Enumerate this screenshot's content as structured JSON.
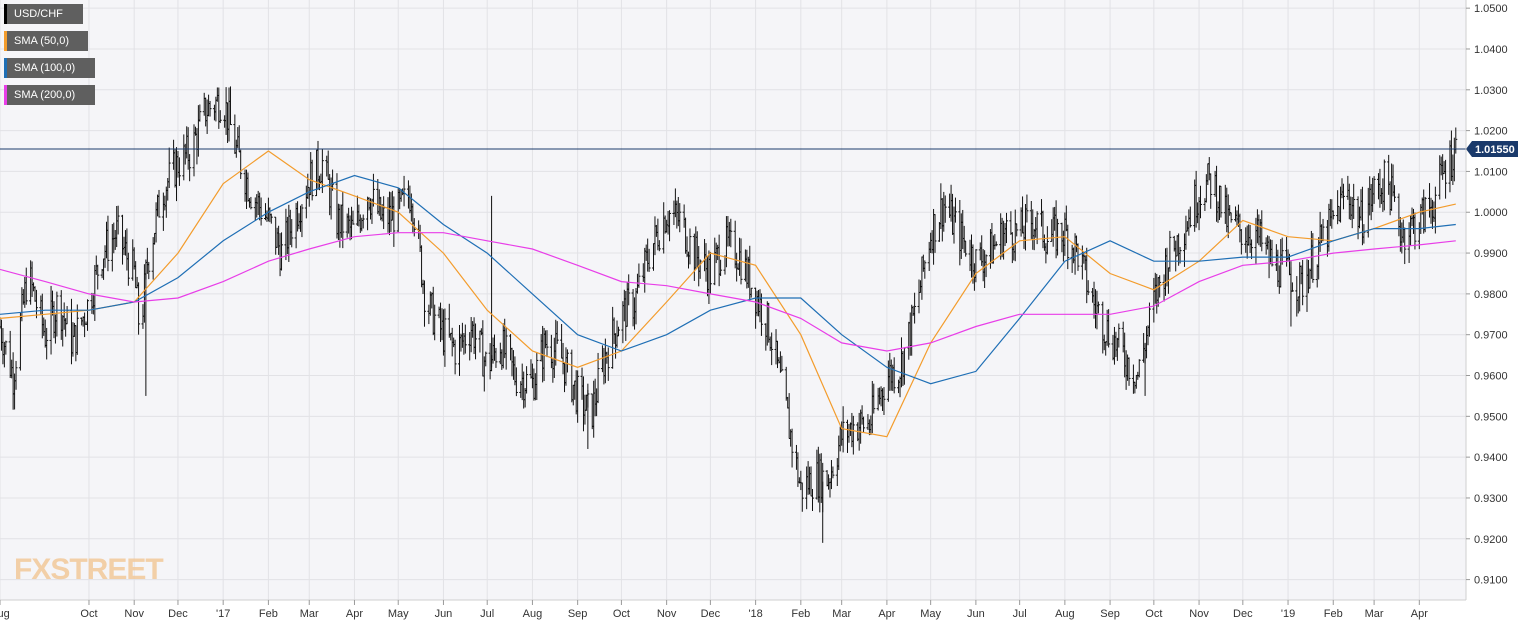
{
  "chart_data": {
    "type": "ohlc",
    "symbol": "USD/CHF",
    "y_axis": {
      "min": 0.905,
      "max": 1.052,
      "ticks": [
        "1.0500",
        "1.0400",
        "1.0300",
        "1.0200",
        "1.0100",
        "1.0000",
        "0.9900",
        "0.9800",
        "0.9700",
        "0.9600",
        "0.9500",
        "0.9400",
        "0.9300",
        "0.9200",
        "0.9100"
      ],
      "position": "right"
    },
    "x_axis": {
      "labels": [
        "Aug",
        "Oct",
        "Nov",
        "Dec",
        "'17",
        "Feb",
        "Mar",
        "Apr",
        "May",
        "Jun",
        "Jul",
        "Aug",
        "Sep",
        "Oct",
        "Nov",
        "Dec",
        "'18",
        "Feb",
        "Mar",
        "Apr",
        "May",
        "Jun",
        "Jul",
        "Aug",
        "Sep",
        "Oct",
        "Nov",
        "Dec",
        "'19",
        "Feb",
        "Mar",
        "Apr"
      ],
      "label_dates": [
        "2016-08-01",
        "2016-10-01",
        "2016-11-01",
        "2016-12-01",
        "2017-01-01",
        "2017-02-01",
        "2017-03-01",
        "2017-04-01",
        "2017-05-01",
        "2017-06-01",
        "2017-07-01",
        "2017-08-01",
        "2017-09-01",
        "2017-10-01",
        "2017-11-01",
        "2017-12-01",
        "2018-01-01",
        "2018-02-01",
        "2018-03-01",
        "2018-04-01",
        "2018-05-01",
        "2018-06-01",
        "2018-07-01",
        "2018-08-01",
        "2018-09-01",
        "2018-10-01",
        "2018-11-01",
        "2018-12-01",
        "2019-01-01",
        "2019-02-01",
        "2019-03-01",
        "2019-04-01"
      ],
      "range": [
        "2016-08-01",
        "2019-05-03"
      ]
    },
    "current_price": {
      "value": 1.0155,
      "label": "1.01550",
      "color": "#1a3a6b"
    },
    "grid": true,
    "legend_position": "top-left",
    "price_path": [
      [
        "2016-08-01",
        0.972
      ],
      [
        "2016-08-10",
        0.96
      ],
      [
        "2016-08-20",
        0.985
      ],
      [
        "2016-09-01",
        0.97
      ],
      [
        "2016-09-10",
        0.978
      ],
      [
        "2016-09-20",
        0.968
      ],
      [
        "2016-10-01",
        0.978
      ],
      [
        "2016-10-10",
        0.99
      ],
      [
        "2016-10-20",
        0.995
      ],
      [
        "2016-11-01",
        0.985
      ],
      [
        "2016-11-05",
        0.97
      ],
      [
        "2016-11-10",
        0.988
      ],
      [
        "2016-11-20",
        1.005
      ],
      [
        "2016-12-01",
        1.012
      ],
      [
        "2016-12-10",
        1.015
      ],
      [
        "2016-12-20",
        1.025
      ],
      [
        "2017-01-01",
        1.028
      ],
      [
        "2017-01-10",
        1.015
      ],
      [
        "2017-01-20",
        1.005
      ],
      [
        "2017-02-01",
        0.998
      ],
      [
        "2017-02-10",
        0.99
      ],
      [
        "2017-02-20",
        1.0
      ],
      [
        "2017-03-01",
        1.008
      ],
      [
        "2017-03-10",
        1.012
      ],
      [
        "2017-03-20",
        0.998
      ],
      [
        "2017-04-01",
        0.995
      ],
      [
        "2017-04-10",
        1.005
      ],
      [
        "2017-04-20",
        0.998
      ],
      [
        "2017-05-01",
        1.0
      ],
      [
        "2017-05-10",
        1.005
      ],
      [
        "2017-05-20",
        0.978
      ],
      [
        "2017-06-01",
        0.97
      ],
      [
        "2017-06-10",
        0.966
      ],
      [
        "2017-06-20",
        0.972
      ],
      [
        "2017-07-01",
        0.962
      ],
      [
        "2017-07-10",
        0.968
      ],
      [
        "2017-07-20",
        0.96
      ],
      [
        "2017-08-01",
        0.958
      ],
      [
        "2017-08-10",
        0.968
      ],
      [
        "2017-08-20",
        0.965
      ],
      [
        "2017-09-01",
        0.955
      ],
      [
        "2017-09-10",
        0.95
      ],
      [
        "2017-09-20",
        0.965
      ],
      [
        "2017-10-01",
        0.975
      ],
      [
        "2017-10-10",
        0.978
      ],
      [
        "2017-10-20",
        0.99
      ],
      [
        "2017-11-01",
        1.0
      ],
      [
        "2017-11-10",
        0.998
      ],
      [
        "2017-11-20",
        0.99
      ],
      [
        "2017-12-01",
        0.985
      ],
      [
        "2017-12-10",
        0.992
      ],
      [
        "2017-12-20",
        0.99
      ],
      [
        "2018-01-01",
        0.98
      ],
      [
        "2018-01-10",
        0.972
      ],
      [
        "2018-01-20",
        0.955
      ],
      [
        "2018-02-01",
        0.932
      ],
      [
        "2018-02-10",
        0.935
      ],
      [
        "2018-02-20",
        0.935
      ],
      [
        "2018-03-01",
        0.945
      ],
      [
        "2018-03-10",
        0.948
      ],
      [
        "2018-03-20",
        0.948
      ],
      [
        "2018-04-01",
        0.96
      ],
      [
        "2018-04-10",
        0.962
      ],
      [
        "2018-04-20",
        0.975
      ],
      [
        "2018-05-01",
        0.995
      ],
      [
        "2018-05-10",
        1.002
      ],
      [
        "2018-05-20",
        0.995
      ],
      [
        "2018-06-01",
        0.988
      ],
      [
        "2018-06-10",
        0.99
      ],
      [
        "2018-06-20",
        0.995
      ],
      [
        "2018-07-01",
        0.995
      ],
      [
        "2018-07-10",
        0.998
      ],
      [
        "2018-07-20",
        0.994
      ],
      [
        "2018-08-01",
        0.995
      ],
      [
        "2018-08-10",
        0.99
      ],
      [
        "2018-08-20",
        0.978
      ],
      [
        "2018-09-01",
        0.97
      ],
      [
        "2018-09-10",
        0.965
      ],
      [
        "2018-09-20",
        0.96
      ],
      [
        "2018-10-01",
        0.978
      ],
      [
        "2018-10-10",
        0.988
      ],
      [
        "2018-10-20",
        0.995
      ],
      [
        "2018-11-01",
        1.005
      ],
      [
        "2018-11-10",
        1.008
      ],
      [
        "2018-11-20",
        0.998
      ],
      [
        "2018-12-01",
        0.995
      ],
      [
        "2018-12-10",
        0.995
      ],
      [
        "2018-12-20",
        0.988
      ],
      [
        "2019-01-01",
        0.985
      ],
      [
        "2019-01-10",
        0.982
      ],
      [
        "2019-01-20",
        0.99
      ],
      [
        "2019-02-01",
        0.998
      ],
      [
        "2019-02-10",
        1.005
      ],
      [
        "2019-02-20",
        0.998
      ],
      [
        "2019-03-01",
        1.005
      ],
      [
        "2019-03-10",
        1.008
      ],
      [
        "2019-03-20",
        0.995
      ],
      [
        "2019-04-01",
        0.998
      ],
      [
        "2019-04-10",
        1.002
      ],
      [
        "2019-04-20",
        1.012
      ],
      [
        "2019-04-26",
        1.0155
      ]
    ],
    "bar_extremes": [
      [
        "2016-11-09",
        0.955,
        0.985
      ],
      [
        "2017-07-04",
        0.962,
        1.004
      ],
      [
        "2017-09-08",
        0.942,
        0.958
      ],
      [
        "2018-02-16",
        0.919,
        0.934
      ],
      [
        "2018-09-25",
        0.955,
        0.968
      ],
      [
        "2019-01-03",
        0.972,
        0.988
      ]
    ],
    "series": [
      {
        "name": "SMA (50,0)",
        "color": "#f39c2c",
        "values": [
          [
            "2016-08-01",
            0.974
          ],
          [
            "2016-09-01",
            0.975
          ],
          [
            "2016-10-01",
            0.976
          ],
          [
            "2016-11-01",
            0.978
          ],
          [
            "2016-12-01",
            0.99
          ],
          [
            "2017-01-01",
            1.007
          ],
          [
            "2017-02-01",
            1.015
          ],
          [
            "2017-03-01",
            1.008
          ],
          [
            "2017-04-01",
            1.004
          ],
          [
            "2017-05-01",
            1.0
          ],
          [
            "2017-06-01",
            0.99
          ],
          [
            "2017-07-01",
            0.976
          ],
          [
            "2017-08-01",
            0.966
          ],
          [
            "2017-09-01",
            0.962
          ],
          [
            "2017-10-01",
            0.966
          ],
          [
            "2017-11-01",
            0.978
          ],
          [
            "2017-12-01",
            0.99
          ],
          [
            "2018-01-01",
            0.987
          ],
          [
            "2018-02-01",
            0.97
          ],
          [
            "2018-03-01",
            0.947
          ],
          [
            "2018-04-01",
            0.945
          ],
          [
            "2018-05-01",
            0.968
          ],
          [
            "2018-06-01",
            0.985
          ],
          [
            "2018-07-01",
            0.993
          ],
          [
            "2018-08-01",
            0.994
          ],
          [
            "2018-09-01",
            0.985
          ],
          [
            "2018-10-01",
            0.981
          ],
          [
            "2018-11-01",
            0.988
          ],
          [
            "2018-12-01",
            0.998
          ],
          [
            "2019-01-01",
            0.994
          ],
          [
            "2019-02-01",
            0.993
          ],
          [
            "2019-03-01",
            0.996
          ],
          [
            "2019-04-01",
            1.0
          ],
          [
            "2019-04-26",
            1.002
          ]
        ]
      },
      {
        "name": "SMA (100,0)",
        "color": "#1f6fb5",
        "values": [
          [
            "2016-08-01",
            0.975
          ],
          [
            "2016-09-01",
            0.976
          ],
          [
            "2016-10-01",
            0.976
          ],
          [
            "2016-11-01",
            0.978
          ],
          [
            "2016-12-01",
            0.984
          ],
          [
            "2017-01-01",
            0.993
          ],
          [
            "2017-02-01",
            1.0
          ],
          [
            "2017-03-01",
            1.005
          ],
          [
            "2017-04-01",
            1.009
          ],
          [
            "2017-05-01",
            1.006
          ],
          [
            "2017-06-01",
            0.997
          ],
          [
            "2017-07-01",
            0.99
          ],
          [
            "2017-08-01",
            0.98
          ],
          [
            "2017-09-01",
            0.97
          ],
          [
            "2017-10-01",
            0.966
          ],
          [
            "2017-11-01",
            0.97
          ],
          [
            "2017-12-01",
            0.976
          ],
          [
            "2018-01-01",
            0.979
          ],
          [
            "2018-02-01",
            0.979
          ],
          [
            "2018-03-01",
            0.97
          ],
          [
            "2018-04-01",
            0.962
          ],
          [
            "2018-05-01",
            0.958
          ],
          [
            "2018-06-01",
            0.961
          ],
          [
            "2018-07-01",
            0.974
          ],
          [
            "2018-08-01",
            0.988
          ],
          [
            "2018-09-01",
            0.993
          ],
          [
            "2018-10-01",
            0.988
          ],
          [
            "2018-11-01",
            0.988
          ],
          [
            "2018-12-01",
            0.989
          ],
          [
            "2019-01-01",
            0.989
          ],
          [
            "2019-02-01",
            0.993
          ],
          [
            "2019-03-01",
            0.996
          ],
          [
            "2019-04-01",
            0.996
          ],
          [
            "2019-04-26",
            0.997
          ]
        ]
      },
      {
        "name": "SMA (200,0)",
        "color": "#e83ee8",
        "values": [
          [
            "2016-08-01",
            0.986
          ],
          [
            "2016-09-01",
            0.983
          ],
          [
            "2016-10-01",
            0.98
          ],
          [
            "2016-11-01",
            0.978
          ],
          [
            "2016-12-01",
            0.979
          ],
          [
            "2017-01-01",
            0.983
          ],
          [
            "2017-02-01",
            0.988
          ],
          [
            "2017-03-01",
            0.991
          ],
          [
            "2017-04-01",
            0.994
          ],
          [
            "2017-05-01",
            0.995
          ],
          [
            "2017-06-01",
            0.995
          ],
          [
            "2017-07-01",
            0.993
          ],
          [
            "2017-08-01",
            0.991
          ],
          [
            "2017-09-01",
            0.987
          ],
          [
            "2017-10-01",
            0.983
          ],
          [
            "2017-11-01",
            0.982
          ],
          [
            "2017-12-01",
            0.98
          ],
          [
            "2018-01-01",
            0.978
          ],
          [
            "2018-02-01",
            0.974
          ],
          [
            "2018-03-01",
            0.968
          ],
          [
            "2018-04-01",
            0.966
          ],
          [
            "2018-05-01",
            0.968
          ],
          [
            "2018-06-01",
            0.972
          ],
          [
            "2018-07-01",
            0.975
          ],
          [
            "2018-08-01",
            0.975
          ],
          [
            "2018-09-01",
            0.975
          ],
          [
            "2018-10-01",
            0.977
          ],
          [
            "2018-11-01",
            0.983
          ],
          [
            "2018-12-01",
            0.987
          ],
          [
            "2019-01-01",
            0.988
          ],
          [
            "2019-02-01",
            0.99
          ],
          [
            "2019-03-01",
            0.991
          ],
          [
            "2019-04-01",
            0.992
          ],
          [
            "2019-04-26",
            0.993
          ]
        ]
      }
    ]
  },
  "legend": [
    {
      "label": "USD/CHF",
      "color": "#000000"
    },
    {
      "label": "SMA (50,0)",
      "color": "#f39c2c"
    },
    {
      "label": "SMA (100,0)",
      "color": "#1f6fb5"
    },
    {
      "label": "SMA (200,0)",
      "color": "#e83ee8"
    }
  ],
  "watermark": {
    "text": "FXSTREET"
  }
}
